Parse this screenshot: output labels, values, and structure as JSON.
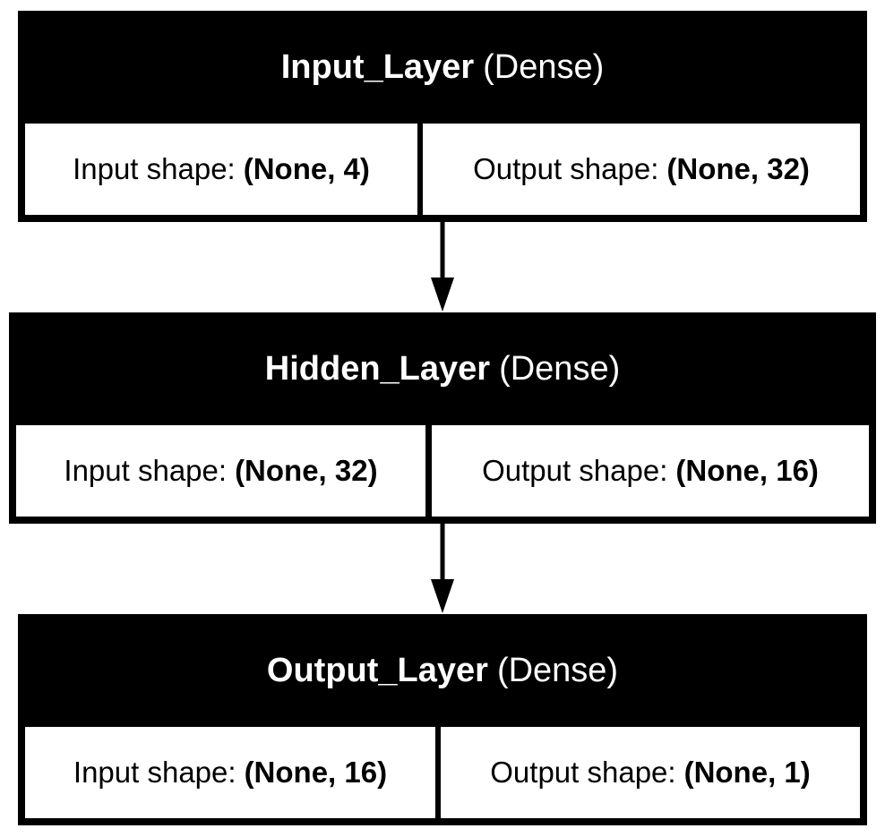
{
  "layers": [
    {
      "name": "Input_Layer",
      "type": "(Dense)",
      "input_label": "Input shape:",
      "input_shape": "(None, 4)",
      "output_label": "Output shape:",
      "output_shape": "(None, 32)"
    },
    {
      "name": "Hidden_Layer",
      "type": "(Dense)",
      "input_label": "Input shape:",
      "input_shape": "(None, 32)",
      "output_label": "Output shape:",
      "output_shape": "(None, 16)"
    },
    {
      "name": "Output_Layer",
      "type": "(Dense)",
      "input_label": "Input shape:",
      "input_shape": "(None, 16)",
      "output_label": "Output shape:",
      "output_shape": "(None, 1)"
    }
  ],
  "colors": {
    "box": "#000000",
    "header_text": "#ffffff",
    "cell_background": "#ffffff",
    "arrow": "#000000"
  }
}
